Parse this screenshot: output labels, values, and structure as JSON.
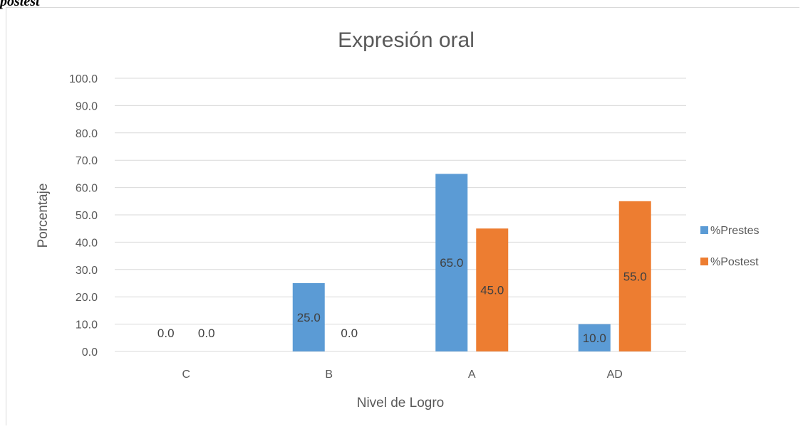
{
  "caption": "postest",
  "chart_data": {
    "type": "bar",
    "title": "Expresión oral",
    "xlabel": "Nivel de Logro",
    "ylabel": "Porcentaje",
    "categories": [
      "C",
      "B",
      "A",
      "AD"
    ],
    "series": [
      {
        "name": "%Prestes",
        "values": [
          0.0,
          25.0,
          65.0,
          10.0
        ],
        "color": "#5b9bd5"
      },
      {
        "name": "%Postest",
        "values": [
          0.0,
          0.0,
          45.0,
          55.0
        ],
        "color": "#ed7d31"
      }
    ],
    "ylim": [
      0,
      100
    ],
    "yticks": [
      "0.0",
      "10.0",
      "20.0",
      "30.0",
      "40.0",
      "50.0",
      "60.0",
      "70.0",
      "80.0",
      "90.0",
      "100.0"
    ],
    "data_labels": [
      [
        "0.0",
        "25.0",
        "65.0",
        "10.0"
      ],
      [
        "0.0",
        "0.0",
        "45.0",
        "55.0"
      ]
    ],
    "grid": true,
    "legend_position": "right"
  }
}
